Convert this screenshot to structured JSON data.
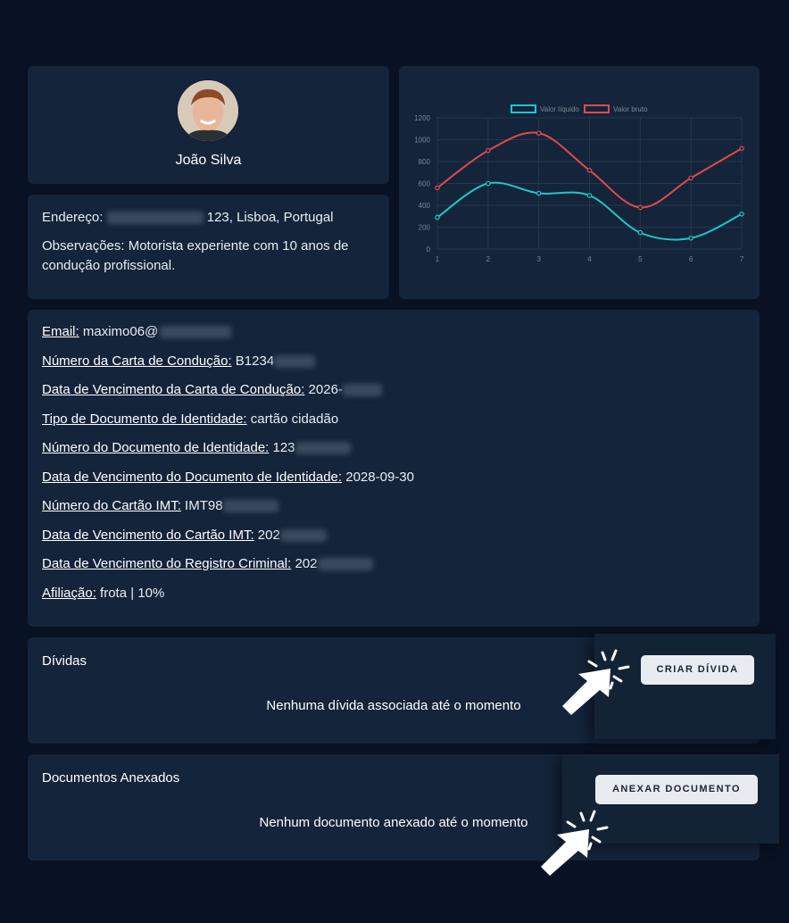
{
  "profile": {
    "name": "João Silva"
  },
  "address": {
    "label": "Endereço:",
    "value_suffix": " 123, Lisboa, Portugal",
    "notes": "Observações: Motorista experiente com 10 anos de condução profissional."
  },
  "info": {
    "email_label": "Email:",
    "email_value": " maximo06@",
    "license_number_label": "Número da Carta de Condução:",
    "license_number_value": " B1234",
    "license_expiry_label": "Data de Vencimento da Carta de Condução:",
    "license_expiry_value": " 2026-",
    "id_type_label": "Tipo de Documento de Identidade:",
    "id_type_value": " cartão cidadão",
    "id_number_label": "Número do Documento de Identidade:",
    "id_number_value": " 123",
    "id_expiry_label": "Data de Vencimento do Documento de Identidade:",
    "id_expiry_value": " 2028-09-30",
    "imt_number_label": "Número do Cartão IMT:",
    "imt_number_value": " IMT98",
    "imt_expiry_label": "Data de Vencimento do Cartão IMT:",
    "imt_expiry_value": " 202",
    "criminal_record_label": "Data de Vencimento do Registro Criminal:",
    "criminal_record_value": " 202",
    "affiliation_label": "Afiliação:",
    "affiliation_value": " frota | 10%"
  },
  "debts": {
    "title": "Dívidas",
    "empty_message": "Nenhuma dívida associada até o momento",
    "create_button": "CRIAR DÍVIDA"
  },
  "documents": {
    "title": "Documentos Anexados",
    "empty_message": "Nenhum documento anexado até o momento",
    "attach_button": "ANEXAR DOCUMENTO"
  },
  "icons": {
    "cursor": "click-cursor-icon"
  },
  "colors": {
    "background": "#081222",
    "card": "#14243a",
    "net_series": "#1fc7c7",
    "gross_series": "#e04a4a"
  },
  "chart_data": {
    "type": "line",
    "x": [
      1,
      2,
      3,
      4,
      5,
      6,
      7
    ],
    "ylim": [
      0,
      1200
    ],
    "yticks": [
      0,
      200,
      400,
      600,
      800,
      1000,
      1200
    ],
    "grid": true,
    "legend": "top",
    "series": [
      {
        "name": "Valor líquido",
        "color": "#1fc7c7",
        "values": [
          290,
          600,
          510,
          490,
          150,
          100,
          320
        ]
      },
      {
        "name": "Valor bruto",
        "color": "#e04a4a",
        "values": [
          560,
          900,
          1060,
          720,
          380,
          650,
          920
        ]
      }
    ]
  }
}
